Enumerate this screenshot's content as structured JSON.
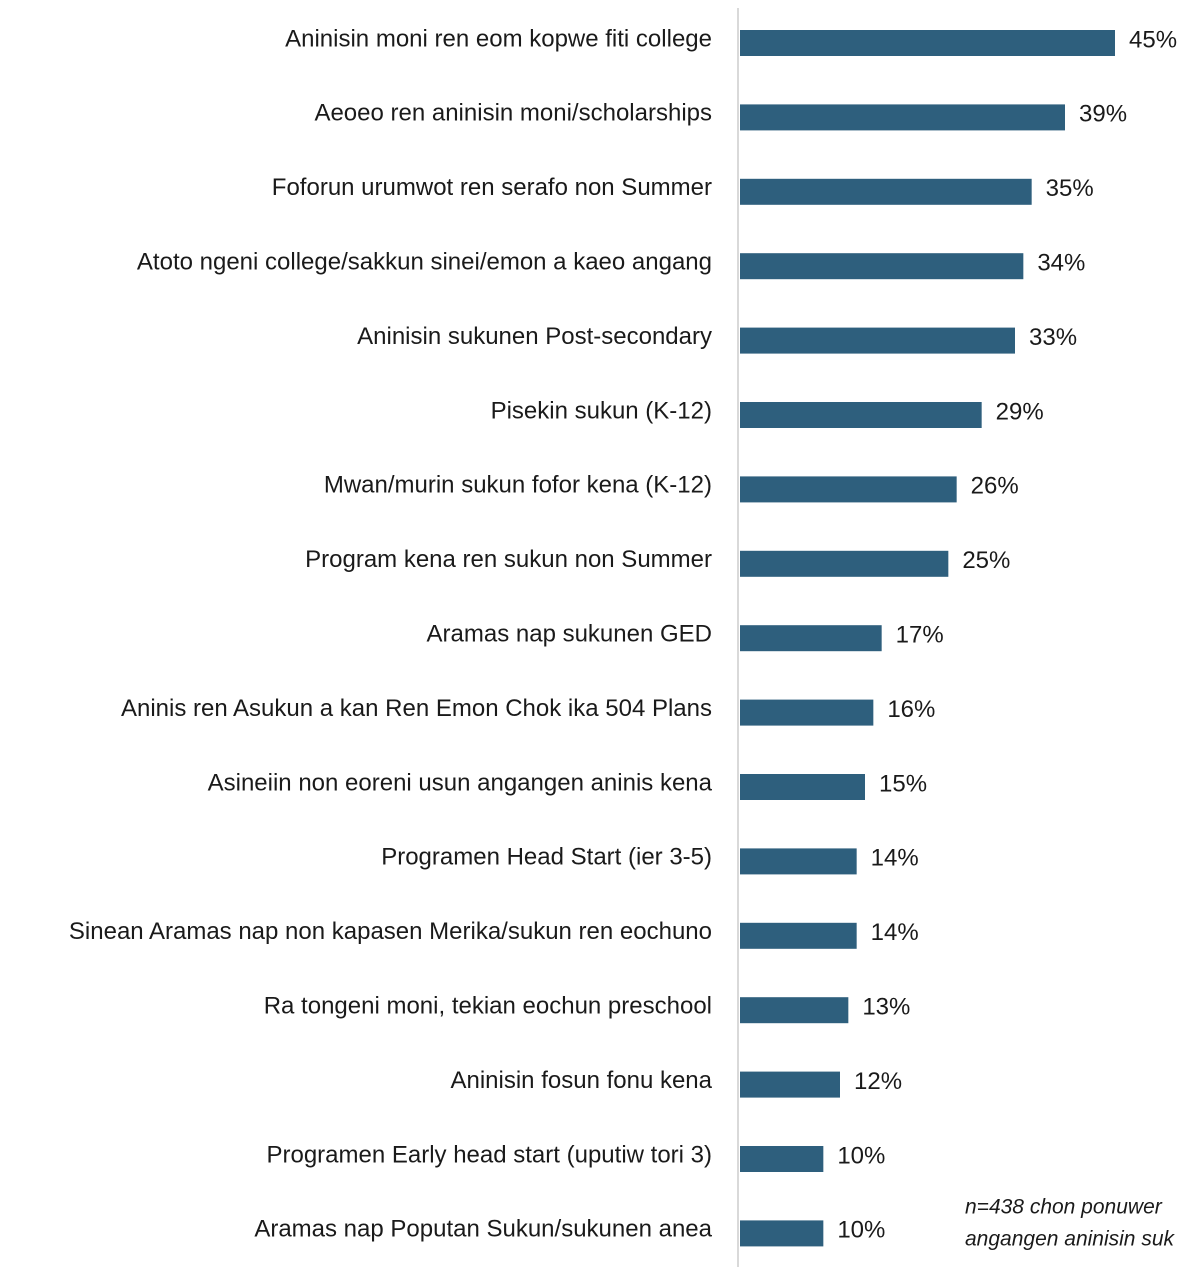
{
  "chart_data": {
    "type": "bar",
    "orientation": "horizontal",
    "color": "#2e5f7d",
    "categories": [
      "Aninisin moni ren eom kopwe fiti college",
      "Aeoeo ren aninisin moni/scholarships",
      "Foforun urumwot ren serafo non Summer",
      "Atoto ngeni college/sakkun sinei/emon a kaeo angang",
      "Aninisin sukunen Post-secondary",
      "Pisekin sukun (K-12)",
      "Mwan/murin sukun fofor kena (K-12)",
      "Program kena ren sukun non Summer",
      "Aramas nap sukunen GED",
      "Aninis ren Asukun a kan Ren Emon Chok ika 504 Plans",
      "Asineiin non eoreni usun angangen aninis kena",
      "Programen Head Start (ier 3-5)",
      "Sinean Aramas nap non kapasen Merika/sukun ren eochuno",
      "Ra tongeni moni, tekian eochun preschool",
      "Aninisin fosun fonu kena",
      "Programen Early head start (uputiw tori 3)",
      "Aramas nap Poputan Sukun/sukunen anea"
    ],
    "values": [
      45,
      39,
      35,
      34,
      33,
      29,
      26,
      25,
      17,
      16,
      15,
      14,
      14,
      13,
      12,
      10,
      10
    ],
    "value_labels": [
      "45%",
      "39%",
      "35%",
      "34%",
      "33%",
      "29%",
      "26%",
      "25%",
      "17%",
      "16%",
      "15%",
      "14%",
      "14%",
      "13%",
      "12%",
      "10%",
      "10%"
    ],
    "annotation": [
      "n=438 chon ponuwer",
      "angangen aninisin suk"
    ]
  }
}
